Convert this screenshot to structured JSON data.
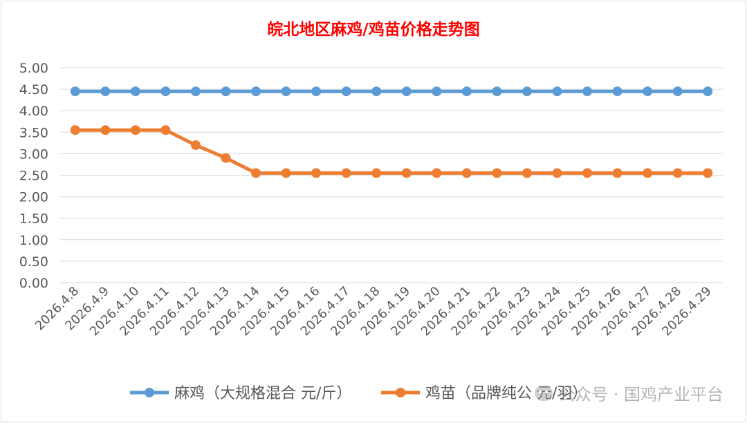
{
  "chart_data": {
    "type": "line",
    "title": "皖北地区麻鸡/鸡苗价格走势图",
    "xlabel": "",
    "ylabel": "",
    "ylim": [
      0,
      5
    ],
    "yticks": [
      "0.00",
      "0.50",
      "1.00",
      "1.50",
      "2.00",
      "2.50",
      "3.00",
      "3.50",
      "4.00",
      "4.50",
      "5.00"
    ],
    "grid": true,
    "legend": "bottom",
    "categories": [
      "2026.4.8",
      "2026.4.9",
      "2026.4.10",
      "2026.4.11",
      "2026.4.12",
      "2026.4.13",
      "2026.4.14",
      "2026.4.15",
      "2026.4.16",
      "2026.4.17",
      "2026.4.18",
      "2026.4.19",
      "2026.4.20",
      "2026.4.21",
      "2026.4.22",
      "2026.4.23",
      "2026.4.24",
      "2026.4.25",
      "2026.4.26",
      "2026.4.27",
      "2026.4.28",
      "2026.4.29"
    ],
    "series": [
      {
        "name": "麻鸡（大规格混合 元/斤）",
        "color": "#5b9bd5",
        "values": [
          4.45,
          4.45,
          4.45,
          4.45,
          4.45,
          4.45,
          4.45,
          4.45,
          4.45,
          4.45,
          4.45,
          4.45,
          4.45,
          4.45,
          4.45,
          4.45,
          4.45,
          4.45,
          4.45,
          4.45,
          4.45,
          4.45
        ]
      },
      {
        "name": "鸡苗（品牌纯公 元/羽）",
        "color": "#ed7d31",
        "values": [
          3.55,
          3.55,
          3.55,
          3.55,
          3.2,
          2.9,
          2.55,
          2.55,
          2.55,
          2.55,
          2.55,
          2.55,
          2.55,
          2.55,
          2.55,
          2.55,
          2.55,
          2.55,
          2.55,
          2.55,
          2.55,
          2.55
        ]
      }
    ],
    "colors": {
      "title": "#ff0000",
      "grid": "#d9d9d9",
      "axis_text": "#595959"
    }
  },
  "watermark": {
    "text": "公众号 · 国鸡产业平台",
    "icon": "wechat-icon"
  }
}
